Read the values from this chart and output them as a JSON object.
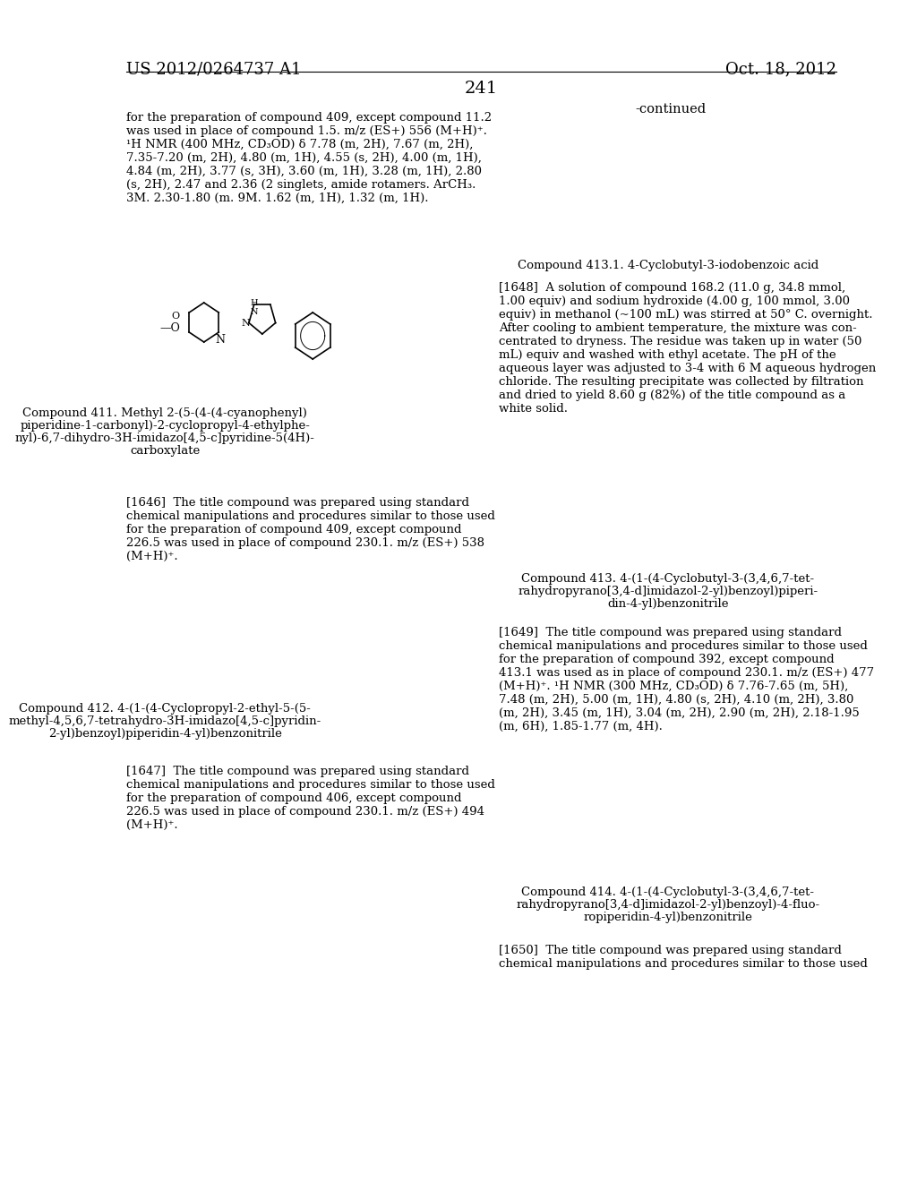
{
  "page_num": "241",
  "header_left": "US 2012/0264737 A1",
  "header_right": "Oct. 18, 2012",
  "background_color": "#ffffff",
  "text_color": "#000000",
  "continued_label": "-continued",
  "left_col_para1": "for the preparation of compound 409, except compound 11.2\nwas used in place of compound 1.5. m/z (ES+) 556 (M+H)⁺.\n¹H NMR (400 MHz, CD₃OD) δ 7.78 (m, 2H), 7.67 (m, 2H),\n7.35-7.20 (m, 2H), 4.80 (m, 1H), 4.55 (s, 2H), 4.00 (m, 1H),\n4.84 (m, 2H), 3.77 (s, 3H), 3.60 (m, 1H), 3.28 (m, 1H), 2.80\n(s, 2H), 2.47 and 2.36 (2 singlets, amide rotamers. ArCH₃.\n3M. 2.30-1.80 (m. 9M. 1.62 (m, 1H), 1.32 (m, 1H).",
  "compound411_label": "Compound 411. Methyl 2-(5-(4-(4-cyanophenyl)\npiperidine-1-carbonyl)-2-cyclopropyl-4-ethylphe-\nnyl)-6,7-dihydro-3H-imidazo[4,5-c]pyridine-5(4H)-\ncarboxylate",
  "para_1646": "[1646]  The title compound was prepared using standard\nchemical manipulations and procedures similar to those used\nfor the preparation of compound 409, except compound\n226.5 was used in place of compound 230.1. m/z (ES+) 538\n(M+H)⁺.",
  "compound412_label": "Compound 412. 4-(1-(4-Cyclopropyl-2-ethyl-5-(5-\nmethyl-4,5,6,7-tetrahydro-3H-imidazo[4,5-c]pyridin-\n2-yl)benzoyl)piperidin-4-yl)benzonitrile",
  "para_1647": "[1647]  The title compound was prepared using standard\nchemical manipulations and procedures similar to those used\nfor the preparation of compound 406, except compound\n226.5 was used in place of compound 230.1. m/z (ES+) 494\n(M+H)⁺.",
  "right_col_compound413_1_label": "Compound 413.1. 4-Cyclobutyl-3-iodobenzoic acid",
  "right_col_para1648": "[1648]  A solution of compound 168.2 (11.0 g, 34.8 mmol,\n1.00 equiv) and sodium hydroxide (4.00 g, 100 mmol, 3.00\nequiv) in methanol (~100 mL) was stirred at 50° C. overnight.\nAfter cooling to ambient temperature, the mixture was con-\ncentrated to dryness. The residue was taken up in water (50\nmL) equiv and washed with ethyl acetate. The pH of the\naqueous layer was adjusted to 3-4 with 6 M aqueous hydrogen\nchloride. The resulting precipitate was collected by filtration\nand dried to yield 8.60 g (82%) of the title compound as a\nwhite solid.",
  "compound413_label": "Compound 413. 4-(1-(4-Cyclobutyl-3-(3,4,6,7-tet-\nrahydropyrano[3,4-d]imidazol-2-yl)benzoyl)piperi-\ndin-4-yl)benzonitrile",
  "para_1649": "[1649]  The title compound was prepared using standard\nchemical manipulations and procedures similar to those used\nfor the preparation of compound 392, except compound\n413.1 was used as in place of compound 230.1. m/z (ES+) 477\n(M+H)⁺. ¹H NMR (300 MHz, CD₃OD) δ 7.76-7.65 (m, 5H),\n7.48 (m, 2H), 5.00 (m, 1H), 4.80 (s, 2H), 4.10 (m, 2H), 3.80\n(m, 2H), 3.45 (m, 1H), 3.04 (m, 2H), 2.90 (m, 2H), 2.18-1.95\n(m, 6H), 1.85-1.77 (m, 4H).",
  "compound414_label": "Compound 414. 4-(1-(4-Cyclobutyl-3-(3,4,6,7-tet-\nrahydropyrano[3,4-d]imidazol-2-yl)benzoyl)-4-fluo-\nropiperidin-4-yl)benzonitrile",
  "para_1650": "[1650]  The title compound was prepared using standard\nchemical manipulations and procedures similar to those used"
}
